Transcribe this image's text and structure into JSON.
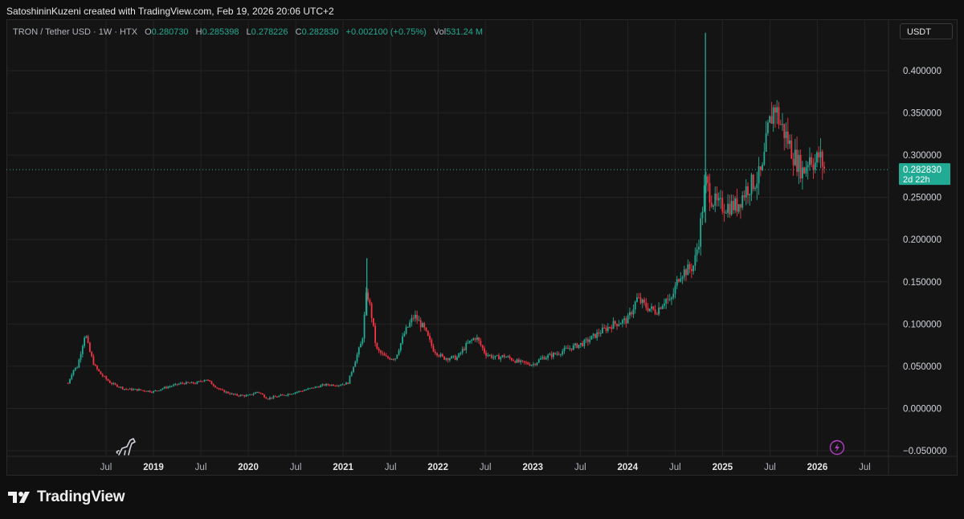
{
  "header": {
    "caption": "SatoshininKuzeni created with TradingView.com, Feb 19, 2026 20:06 UTC+2"
  },
  "legend": {
    "symbol": "TRON / Tether USD · 1W · HTX",
    "open_label": "O",
    "open": "0.280730",
    "high_label": "H",
    "high": "0.285398",
    "low_label": "L",
    "low": "0.278226",
    "close_label": "C",
    "close": "0.282830",
    "change": "+0.002100 (+0.75%)",
    "vol_label": "Vol",
    "vol": "531.24 M"
  },
  "unit_button": "USDT",
  "price_tag": {
    "value": "0.282830",
    "countdown": "2d 22h"
  },
  "brand": {
    "name": "TradingView"
  },
  "colors": {
    "up": "#22ab94",
    "down": "#f23645",
    "grid": "#232323",
    "tag_bg": "#22ab94",
    "lightning": "#b33ec4"
  },
  "icons": {
    "dino": "dino-icon",
    "lightning": "lightning-icon",
    "logo": "tradingview-logo-icon"
  },
  "chart_data": {
    "type": "candlestick",
    "title": "TRON / Tether USD · 1W · HTX",
    "ylim": [
      -0.05,
      0.42
    ],
    "y_ticks": [
      "0.400000",
      "0.350000",
      "0.300000",
      "0.250000",
      "0.200000",
      "0.150000",
      "0.100000",
      "0.050000",
      "0.000000",
      "−0.050000"
    ],
    "y_tick_values": [
      0.4,
      0.35,
      0.3,
      0.25,
      0.2,
      0.15,
      0.1,
      0.05,
      0.0,
      -0.05
    ],
    "x_ticks": [
      {
        "label": "Jul",
        "t": 2018.5,
        "bold": false
      },
      {
        "label": "2019",
        "t": 2019.0,
        "bold": true
      },
      {
        "label": "Jul",
        "t": 2019.5,
        "bold": false
      },
      {
        "label": "2020",
        "t": 2020.0,
        "bold": true
      },
      {
        "label": "Jul",
        "t": 2020.5,
        "bold": false
      },
      {
        "label": "2021",
        "t": 2021.0,
        "bold": true
      },
      {
        "label": "Jul",
        "t": 2021.5,
        "bold": false
      },
      {
        "label": "2022",
        "t": 2022.0,
        "bold": true
      },
      {
        "label": "Jul",
        "t": 2022.5,
        "bold": false
      },
      {
        "label": "2023",
        "t": 2023.0,
        "bold": true
      },
      {
        "label": "Jul",
        "t": 2023.5,
        "bold": false
      },
      {
        "label": "2024",
        "t": 2024.0,
        "bold": true
      },
      {
        "label": "Jul",
        "t": 2024.5,
        "bold": false
      },
      {
        "label": "2025",
        "t": 2025.0,
        "bold": true
      },
      {
        "label": "Jul",
        "t": 2025.5,
        "bold": false
      },
      {
        "label": "2026",
        "t": 2026.0,
        "bold": true
      },
      {
        "label": "Jul",
        "t": 2026.5,
        "bold": false
      }
    ],
    "x_range": [
      2017.45,
      2026.75
    ],
    "last_price": 0.28283,
    "grid": true,
    "path_points": [
      [
        2018.1,
        0.03
      ],
      [
        2018.15,
        0.045
      ],
      [
        2018.2,
        0.05
      ],
      [
        2018.25,
        0.075
      ],
      [
        2018.28,
        0.09
      ],
      [
        2018.32,
        0.07
      ],
      [
        2018.38,
        0.05
      ],
      [
        2018.45,
        0.04
      ],
      [
        2018.55,
        0.03
      ],
      [
        2018.7,
        0.023
      ],
      [
        2018.85,
        0.022
      ],
      [
        2019.0,
        0.02
      ],
      [
        2019.1,
        0.024
      ],
      [
        2019.3,
        0.03
      ],
      [
        2019.45,
        0.03
      ],
      [
        2019.55,
        0.035
      ],
      [
        2019.7,
        0.022
      ],
      [
        2019.85,
        0.016
      ],
      [
        2020.0,
        0.015
      ],
      [
        2020.1,
        0.02
      ],
      [
        2020.2,
        0.012
      ],
      [
        2020.3,
        0.014
      ],
      [
        2020.45,
        0.018
      ],
      [
        2020.6,
        0.022
      ],
      [
        2020.8,
        0.028
      ],
      [
        2020.95,
        0.028
      ],
      [
        2021.05,
        0.03
      ],
      [
        2021.12,
        0.055
      ],
      [
        2021.2,
        0.08
      ],
      [
        2021.25,
        0.14
      ],
      [
        2021.3,
        0.11
      ],
      [
        2021.35,
        0.07
      ],
      [
        2021.45,
        0.06
      ],
      [
        2021.55,
        0.06
      ],
      [
        2021.65,
        0.09
      ],
      [
        2021.75,
        0.11
      ],
      [
        2021.85,
        0.095
      ],
      [
        2021.95,
        0.07
      ],
      [
        2022.05,
        0.06
      ],
      [
        2022.2,
        0.06
      ],
      [
        2022.3,
        0.075
      ],
      [
        2022.4,
        0.085
      ],
      [
        2022.5,
        0.065
      ],
      [
        2022.6,
        0.06
      ],
      [
        2022.7,
        0.062
      ],
      [
        2022.85,
        0.055
      ],
      [
        2023.0,
        0.052
      ],
      [
        2023.1,
        0.06
      ],
      [
        2023.25,
        0.065
      ],
      [
        2023.4,
        0.072
      ],
      [
        2023.55,
        0.078
      ],
      [
        2023.7,
        0.09
      ],
      [
        2023.85,
        0.1
      ],
      [
        2024.0,
        0.105
      ],
      [
        2024.1,
        0.13
      ],
      [
        2024.2,
        0.12
      ],
      [
        2024.3,
        0.115
      ],
      [
        2024.4,
        0.13
      ],
      [
        2024.45,
        0.125
      ],
      [
        2024.55,
        0.16
      ],
      [
        2024.65,
        0.165
      ],
      [
        2024.7,
        0.17
      ],
      [
        2024.75,
        0.2
      ],
      [
        2024.78,
        0.23
      ],
      [
        2024.82,
        0.27
      ],
      [
        2024.88,
        0.25
      ],
      [
        2024.95,
        0.24
      ],
      [
        2025.05,
        0.24
      ],
      [
        2025.15,
        0.24
      ],
      [
        2025.25,
        0.26
      ],
      [
        2025.35,
        0.27
      ],
      [
        2025.42,
        0.28
      ],
      [
        2025.48,
        0.33
      ],
      [
        2025.55,
        0.36
      ],
      [
        2025.6,
        0.34
      ],
      [
        2025.68,
        0.32
      ],
      [
        2025.75,
        0.3
      ],
      [
        2025.85,
        0.28
      ],
      [
        2025.92,
        0.3
      ],
      [
        2025.97,
        0.29
      ],
      [
        2026.02,
        0.3
      ],
      [
        2026.08,
        0.282
      ]
    ],
    "spikes": [
      {
        "t": 2024.82,
        "high": 0.445,
        "low": 0.22,
        "color": "up"
      },
      {
        "t": 2021.25,
        "high": 0.178,
        "low": 0.11,
        "color": "up"
      }
    ]
  }
}
